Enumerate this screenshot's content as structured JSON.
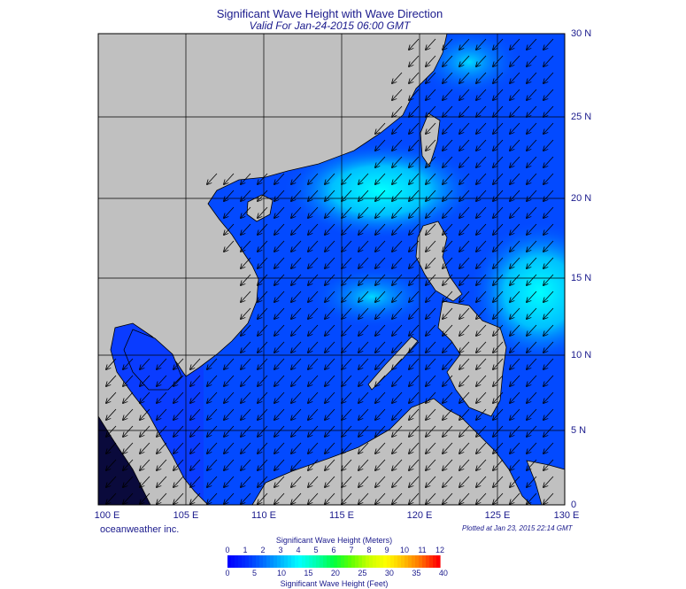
{
  "header": {
    "title": "Significant Wave Height with Wave Direction",
    "subtitle": "Valid For Jan-24-2015 06:00 GMT"
  },
  "map": {
    "x_ticks": [
      "100 E",
      "105 E",
      "110 E",
      "115 E",
      "120 E",
      "125 E",
      "130 E"
    ],
    "y_ticks": [
      "30 N",
      "25 N",
      "20 N",
      "15 N",
      "10 N",
      "5 N",
      "0"
    ],
    "lon_range": [
      100,
      130
    ],
    "lat_range": [
      0,
      30
    ],
    "land_color": "#c0c0c0",
    "grid_color": "#000000",
    "arrow_direction": "southwest"
  },
  "footer": {
    "company": "oceanweather inc.",
    "plotted": "Plotted at Jan 23, 2015 22:14 GMT"
  },
  "colorbar": {
    "title_top": "Significant Wave Height (Meters)",
    "title_bottom": "Significant Wave Height (Feet)",
    "meters": [
      "0",
      "1",
      "2",
      "3",
      "4",
      "5",
      "6",
      "7",
      "8",
      "9",
      "10",
      "11",
      "12"
    ],
    "feet": [
      "0",
      "5",
      "10",
      "15",
      "20",
      "25",
      "30",
      "35",
      "40"
    ],
    "colors": [
      "#0000ff",
      "#0030ff",
      "#0070ff",
      "#00b8ff",
      "#00ffff",
      "#00ffb0",
      "#00ff40",
      "#60ff00",
      "#c8ff00",
      "#ffff00",
      "#ffc000",
      "#ff7000",
      "#ff0000"
    ]
  }
}
